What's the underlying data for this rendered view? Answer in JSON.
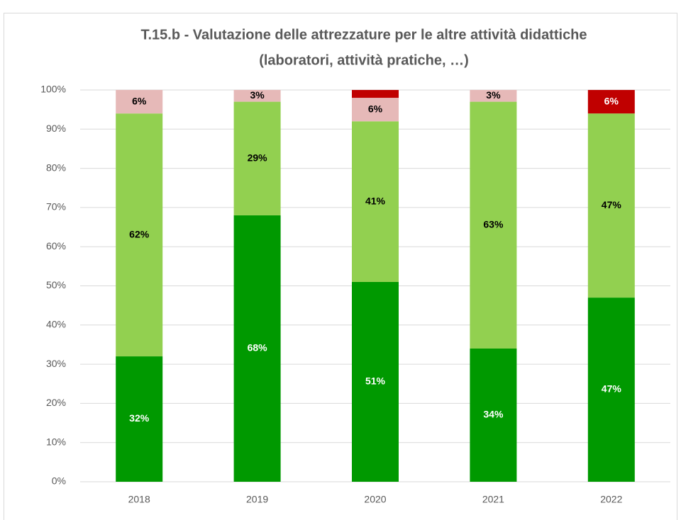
{
  "chart_data": {
    "type": "stacked_bar",
    "title": [
      "T.15.b - Valutazione delle attrezzature per le altre attività didattiche",
      "(laboratori, attività pratiche, …)"
    ],
    "categories": [
      "2018",
      "2019",
      "2020",
      "2021",
      "2022"
    ],
    "series": [
      {
        "color": "#009900",
        "label_color": "#ffffff",
        "values": [
          32,
          68,
          51,
          34,
          47
        ],
        "value_labels": [
          "32%",
          "68%",
          "51%",
          "34%",
          "47%"
        ]
      },
      {
        "color": "#92d050",
        "label_color": "#000000",
        "values": [
          62,
          29,
          41,
          63,
          47
        ],
        "value_labels": [
          "62%",
          "29%",
          "41%",
          "63%",
          "47%"
        ]
      },
      {
        "color": "#e6b9b8",
        "label_color": "#000000",
        "values": [
          6,
          3,
          6,
          3,
          0
        ],
        "value_labels": [
          "6%",
          "3%",
          "6%",
          "3%",
          null
        ]
      },
      {
        "color": "#c00000",
        "label_color": "#ffffff",
        "values": [
          0,
          0,
          2,
          0,
          6
        ],
        "value_labels": [
          null,
          null,
          null,
          null,
          "6%"
        ]
      }
    ],
    "ylim": [
      0,
      100
    ],
    "yticks": [
      {
        "value": 0,
        "label": "0%"
      },
      {
        "value": 10,
        "label": "10%"
      },
      {
        "value": 20,
        "label": "20%"
      },
      {
        "value": 30,
        "label": "30%"
      },
      {
        "value": 40,
        "label": "40%"
      },
      {
        "value": 50,
        "label": "50%"
      },
      {
        "value": 60,
        "label": "60%"
      },
      {
        "value": 70,
        "label": "70%"
      },
      {
        "value": 80,
        "label": "80%"
      },
      {
        "value": 90,
        "label": "90%"
      },
      {
        "value": 100,
        "label": "100%"
      }
    ],
    "grid": true
  }
}
